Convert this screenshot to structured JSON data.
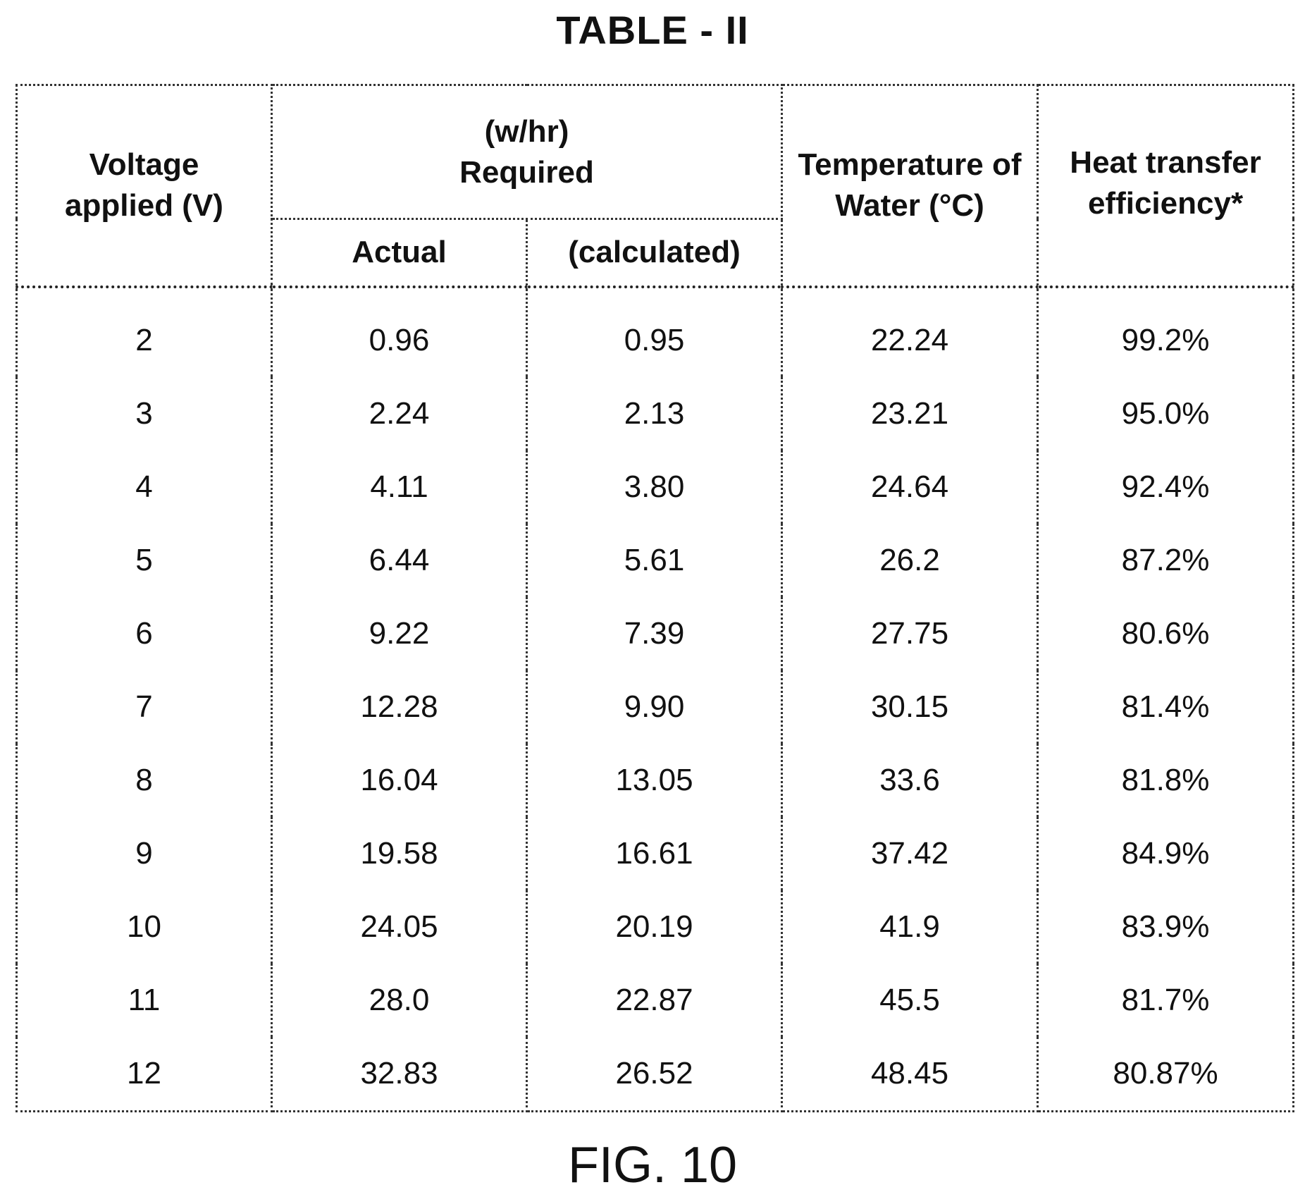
{
  "table_title": "TABLE - II",
  "header": {
    "voltage": "Voltage applied (V)",
    "required_top": "(w/hr)",
    "required_label": "Required",
    "actual": "Actual",
    "calculated": "(calculated)",
    "temperature": "Temperature of Water (°C)",
    "efficiency": "Heat transfer efficiency*"
  },
  "rows": [
    [
      "2",
      "0.96",
      "0.95",
      "22.24",
      "99.2%"
    ],
    [
      "3",
      "2.24",
      "2.13",
      "23.21",
      "95.0%"
    ],
    [
      "4",
      "4.11",
      "3.80",
      "24.64",
      "92.4%"
    ],
    [
      "5",
      "6.44",
      "5.61",
      "26.2",
      "87.2%"
    ],
    [
      "6",
      "9.22",
      "7.39",
      "27.75",
      "80.6%"
    ],
    [
      "7",
      "12.28",
      "9.90",
      "30.15",
      "81.4%"
    ],
    [
      "8",
      "16.04",
      "13.05",
      "33.6",
      "81.8%"
    ],
    [
      "9",
      "19.58",
      "16.61",
      "37.42",
      "84.9%"
    ],
    [
      "10",
      "24.05",
      "20.19",
      "41.9",
      "83.9%"
    ],
    [
      "11",
      "28.0",
      "22.87",
      "45.5",
      "81.7%"
    ],
    [
      "12",
      "32.83",
      "26.52",
      "48.45",
      "80.87%"
    ]
  ],
  "caption": "FIG. 10"
}
